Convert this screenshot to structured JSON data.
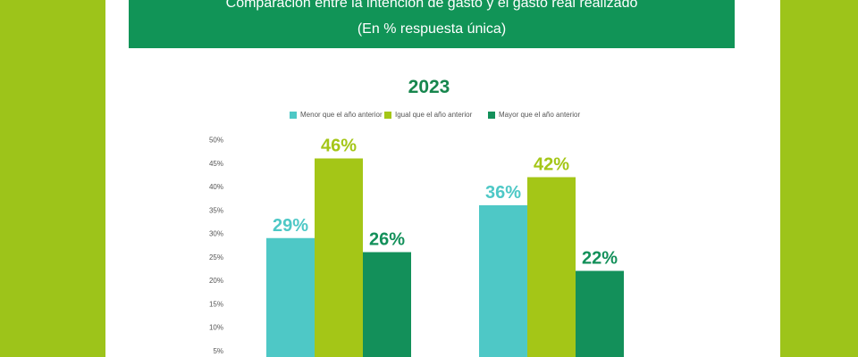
{
  "header": {
    "title": "Comparación entre la intención de gasto y el gasto real realizado",
    "subtitle": "(En % respuesta única)"
  },
  "colors": {
    "background": "#9dc41a",
    "banner": "#119457",
    "menor": "#4ec8c6",
    "igual": "#a4c617",
    "mayor": "#13905a"
  },
  "chart_data": {
    "type": "bar",
    "title": "2023",
    "xlabel": "",
    "ylabel": "",
    "ylim": [
      0,
      50
    ],
    "y_ticks": [
      "50%",
      "45%",
      "40%",
      "35%",
      "30%",
      "25%",
      "20%",
      "15%",
      "10%",
      "5%"
    ],
    "grid": false,
    "legend_position": "top",
    "groups": 2,
    "series": [
      {
        "name": "Menor que el año anterior",
        "color": "#4ec8c6",
        "values": [
          29,
          36
        ],
        "labels": [
          "29%",
          "36%"
        ]
      },
      {
        "name": "Igual que el año anterior",
        "color": "#a4c617",
        "values": [
          46,
          42
        ],
        "labels": [
          "46%",
          "42%"
        ]
      },
      {
        "name": "Mayor que el año anterior",
        "color": "#13905a",
        "values": [
          26,
          22
        ],
        "labels": [
          "26%",
          "22%"
        ]
      }
    ]
  }
}
